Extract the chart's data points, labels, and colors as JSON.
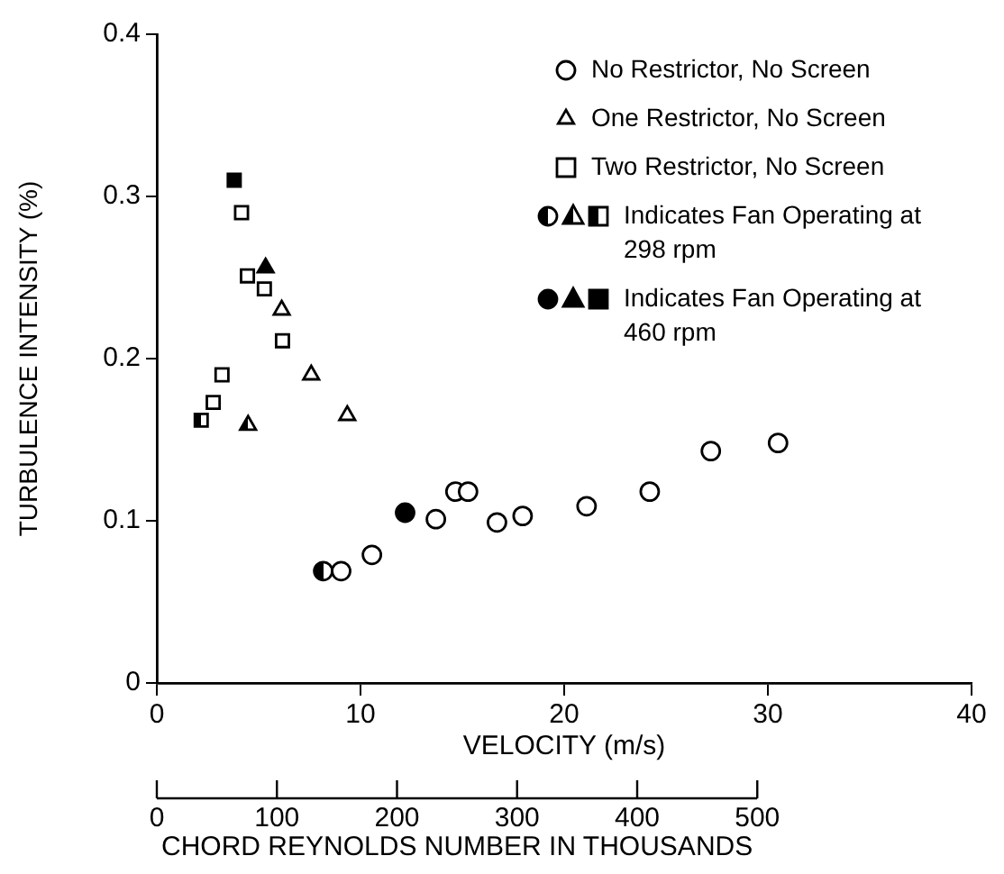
{
  "chart_data": {
    "type": "scatter",
    "xlabel": "VELOCITY (m/s)",
    "ylabel": "TURBULENCE INTENSITY (%)",
    "x2label": "CHORD REYNOLDS NUMBER IN THOUSANDS",
    "xlim": [
      0,
      40
    ],
    "xticks": [
      0,
      10,
      20,
      30,
      40
    ],
    "ylim": [
      0,
      0.4
    ],
    "yticks": [
      0,
      0.1,
      0.2,
      0.3,
      0.4
    ],
    "x2lim": [
      0,
      500
    ],
    "x2ticks": [
      0,
      100,
      200,
      300,
      400,
      500
    ],
    "grid": false,
    "legend": "top right",
    "series": [
      {
        "name": "No Restrictor, No Screen",
        "color": "#000000",
        "marker": "circle",
        "x": [
          9.05,
          10.56,
          13.7,
          14.66,
          15.28,
          16.7,
          17.96,
          21.1,
          24.2,
          27.2,
          30.5
        ],
        "values": [
          0.069,
          0.079,
          0.101,
          0.118,
          0.118,
          0.099,
          0.103,
          0.109,
          0.118,
          0.143,
          0.148
        ]
      },
      {
        "name": "One Restrictor, No Screen",
        "color": "#000000",
        "marker": "triangle",
        "x": [
          6.13,
          7.58,
          9.35
        ],
        "values": [
          0.23,
          0.19,
          0.165
        ]
      },
      {
        "name": "Two Restrictor, No Screen",
        "color": "#000000",
        "marker": "square",
        "x": [
          2.77,
          3.2,
          4.16,
          4.45,
          5.28,
          6.17
        ],
        "values": [
          0.173,
          0.19,
          0.29,
          0.251,
          0.243,
          0.211
        ]
      },
      {
        "color": "#000000",
        "marker": "circle",
        "x": [
          8.17
        ],
        "values": [
          0.069
        ]
      },
      {
        "color": "#000000",
        "marker": "triangle",
        "x": [
          4.48
        ],
        "values": [
          0.159
        ]
      },
      {
        "name": "Indicates Fan Operating at 298 rpm",
        "color": "#000000",
        "marker": "square",
        "x": [
          2.18
        ],
        "values": [
          0.162
        ]
      },
      {
        "color": "#000000",
        "marker": "circle",
        "x": [
          12.19
        ],
        "values": [
          0.105
        ]
      },
      {
        "color": "#000000",
        "marker": "triangle",
        "x": [
          5.34
        ],
        "values": [
          0.256
        ]
      },
      {
        "name": "Indicates Fan Operating at 460 rpm",
        "color": "#000000",
        "marker": "square",
        "x": [
          3.8
        ],
        "values": [
          0.31
        ]
      }
    ]
  }
}
